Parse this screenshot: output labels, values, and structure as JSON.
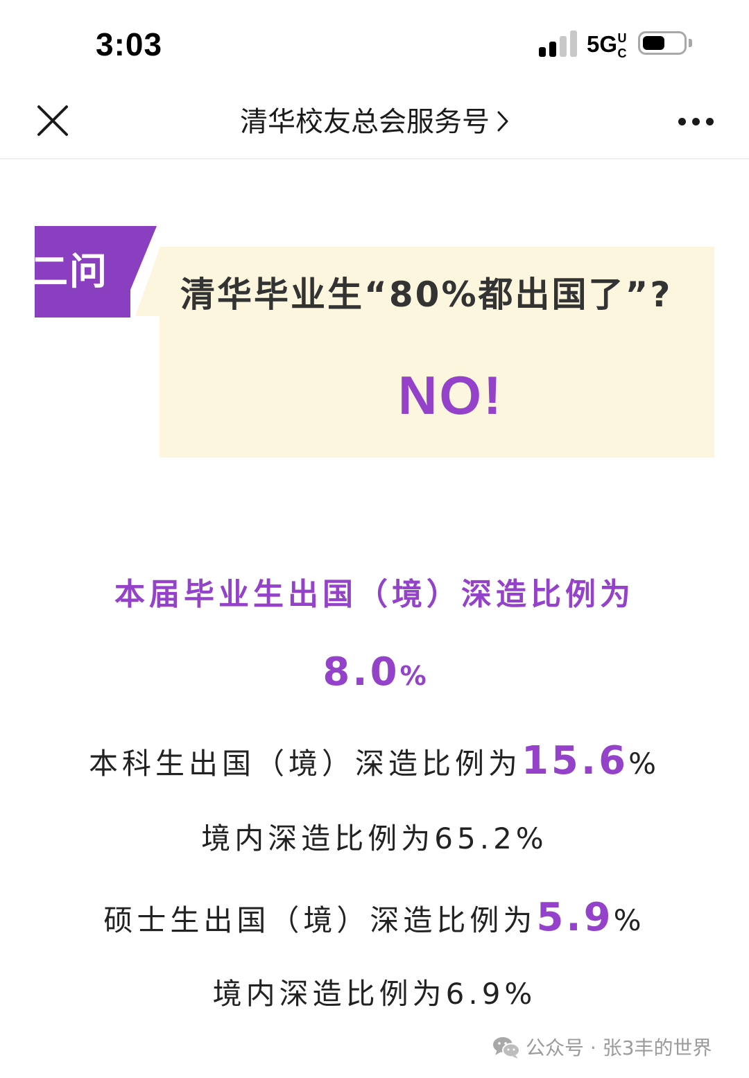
{
  "status_bar": {
    "time": "3:03",
    "network": "5G",
    "signal_bars_active": 2,
    "signal_bars_total": 4,
    "battery_level": 0.55
  },
  "nav": {
    "title": "清华校友总会服务号"
  },
  "question": {
    "tag": "二问",
    "text": "清华毕业生“80%都出国了”?",
    "answer": "NO!"
  },
  "stats": {
    "headline": "本届毕业生出国（境）深造比例为",
    "headline_value": "8.0",
    "headline_unit": "%",
    "undergrad_abroad_label": "本科生出国（境）深造比例为",
    "undergrad_abroad_value": "15.6",
    "undergrad_abroad_unit": "%",
    "undergrad_domestic": "境内深造比例为65.2%",
    "master_abroad_label": "硕士生出国（境）深造比例为",
    "master_abroad_value": "5.9",
    "master_abroad_unit": "%",
    "master_domestic": "境内深造比例为6.9%"
  },
  "watermark": {
    "text": "公众号 · 张3丰的世界"
  },
  "colors": {
    "accent_purple": "#9442c9",
    "tag_purple": "#8a3fc0",
    "card_cream": "#fdf6df"
  }
}
